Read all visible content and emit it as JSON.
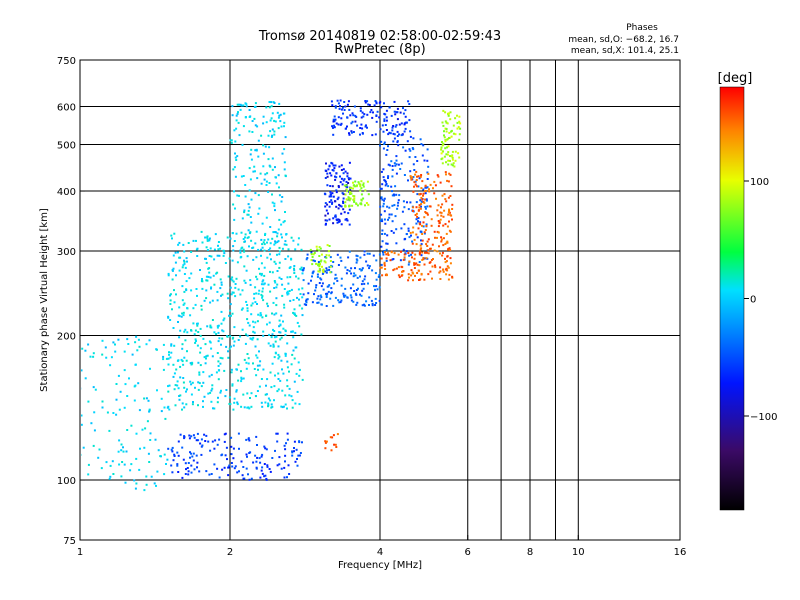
{
  "chart_data": {
    "type": "scatter",
    "title": "Tromsø 20140819 02:58:00-02:59:43",
    "subtitle": "RwPretec (8p)",
    "xlabel": "Frequency [MHz]",
    "ylabel": "Stationary phase Virtual Height [km]",
    "x_scale": "log",
    "y_scale": "log",
    "xlim": [
      1,
      16
    ],
    "ylim": [
      75,
      750
    ],
    "x_ticks": [
      1,
      2,
      4,
      6,
      8,
      10,
      16
    ],
    "x_tick_labels": [
      "1",
      "2",
      "4",
      "6",
      "8",
      "10",
      "16"
    ],
    "x_gridlines": [
      2,
      4,
      6,
      7,
      8,
      9,
      10
    ],
    "y_ticks": [
      75,
      100,
      200,
      300,
      400,
      500,
      600,
      750
    ],
    "y_tick_labels": [
      "75",
      "100",
      "200",
      "300",
      "400",
      "500",
      "600",
      "750"
    ],
    "grid": true,
    "phase_info": {
      "heading": "Phases",
      "line_O": "mean, sd,O: −68.2, 16.7",
      "line_X": "mean, sd,X: 101.4, 25.1"
    },
    "colorbar": {
      "label": "[deg]",
      "range": [
        -180,
        180
      ],
      "ticks": [
        100,
        0,
        -100
      ],
      "tick_labels": [
        "100",
        "0",
        "−100"
      ],
      "colormap": "rainbow: black (-180) → blue (-110) → cyan (-30) → green (40) → yellow (100) → red (180)"
    },
    "series_clusters": [
      {
        "x_range": [
          1.5,
          2.8
        ],
        "y_range": [
          140,
          330
        ],
        "phase": -28,
        "n": 700
      },
      {
        "x_range": [
          2.0,
          2.6
        ],
        "y_range": [
          300,
          620
        ],
        "phase": -32,
        "n": 200
      },
      {
        "x_range": [
          1.0,
          1.5
        ],
        "y_range": [
          95,
          200
        ],
        "phase": -30,
        "n": 140
      },
      {
        "x_range": [
          1.5,
          2.8
        ],
        "y_range": [
          100,
          125
        ],
        "phase": -95,
        "n": 180
      },
      {
        "x_range": [
          2.8,
          4.0
        ],
        "y_range": [
          230,
          300
        ],
        "phase": -80,
        "n": 180
      },
      {
        "x_range": [
          3.1,
          3.5
        ],
        "y_range": [
          340,
          460
        ],
        "phase": -105,
        "n": 120
      },
      {
        "x_range": [
          3.2,
          4.6
        ],
        "y_range": [
          520,
          620
        ],
        "phase": -100,
        "n": 150
      },
      {
        "x_range": [
          4.0,
          5.0
        ],
        "y_range": [
          280,
          520
        ],
        "phase": -85,
        "n": 200
      },
      {
        "x_range": [
          4.0,
          5.6
        ],
        "y_range": [
          260,
          300
        ],
        "phase": 150,
        "n": 120
      },
      {
        "x_range": [
          4.6,
          5.6
        ],
        "y_range": [
          300,
          440
        ],
        "phase": 150,
        "n": 160
      },
      {
        "x_range": [
          5.3,
          5.8
        ],
        "y_range": [
          450,
          600
        ],
        "phase": 85,
        "n": 80
      },
      {
        "x_range": [
          3.4,
          3.8
        ],
        "y_range": [
          370,
          420
        ],
        "phase": 80,
        "n": 70
      },
      {
        "x_range": [
          2.9,
          3.2
        ],
        "y_range": [
          270,
          310
        ],
        "phase": 80,
        "n": 40
      },
      {
        "x_range": [
          3.1,
          3.3
        ],
        "y_range": [
          115,
          125
        ],
        "phase": 155,
        "n": 12
      }
    ]
  }
}
